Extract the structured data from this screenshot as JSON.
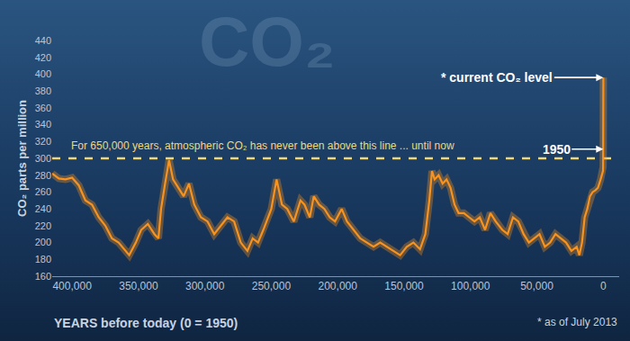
{
  "chart_data": {
    "type": "line",
    "background_text": "CO₂",
    "y_label": "CO₂ parts per million",
    "x_label": "YEARS before today (0 = 1950)",
    "footnote": "* as of July 2013",
    "reference_line": {
      "value": 300,
      "label": "For 650,000 years, atmospheric CO₂ has never been above this line ... until now",
      "color": "#f0d77a",
      "line_style": "dashed"
    },
    "annotations": [
      {
        "text": "* current CO₂ level",
        "x": -63,
        "y": 396
      },
      {
        "text": "1950",
        "x": 0,
        "y": 311
      }
    ],
    "color": "#f7931e",
    "x": [
      415000,
      410000,
      405000,
      400000,
      395000,
      390000,
      385000,
      380000,
      375000,
      370000,
      365000,
      360000,
      357000,
      352000,
      348000,
      343000,
      338000,
      335000,
      333000,
      330000,
      327000,
      324000,
      320000,
      316000,
      312000,
      308000,
      303000,
      298000,
      293000,
      288000,
      283000,
      278000,
      273000,
      268000,
      264000,
      260000,
      256000,
      250000,
      246000,
      242000,
      238000,
      233000,
      228000,
      225000,
      221000,
      218000,
      214000,
      210000,
      206000,
      202000,
      197000,
      193000,
      188000,
      183000,
      178000,
      173000,
      168000,
      163000,
      158000,
      153000,
      148000,
      143000,
      138000,
      134000,
      131000,
      129000,
      127000,
      124000,
      121000,
      118000,
      115000,
      112000,
      109000,
      105000,
      101000,
      97000,
      93000,
      89000,
      85000,
      81000,
      76000,
      72000,
      68000,
      64000,
      60000,
      56000,
      52000,
      48000,
      44000,
      40000,
      36000,
      32000,
      28000,
      24000,
      20000,
      18000,
      16000,
      14000,
      12000,
      10000,
      8000,
      6000,
      4000,
      2000,
      1000,
      200,
      100,
      0,
      -63
    ],
    "values": [
      282,
      276,
      275,
      277,
      268,
      250,
      245,
      230,
      220,
      205,
      200,
      190,
      185,
      200,
      215,
      222,
      210,
      205,
      240,
      270,
      298,
      275,
      265,
      255,
      270,
      245,
      230,
      225,
      210,
      220,
      230,
      225,
      200,
      190,
      205,
      200,
      215,
      240,
      275,
      245,
      240,
      225,
      250,
      245,
      230,
      255,
      245,
      240,
      230,
      225,
      240,
      225,
      215,
      205,
      200,
      195,
      200,
      195,
      190,
      185,
      195,
      200,
      192,
      210,
      250,
      285,
      275,
      280,
      270,
      275,
      265,
      245,
      235,
      235,
      230,
      225,
      230,
      215,
      235,
      225,
      215,
      210,
      230,
      225,
      210,
      200,
      205,
      210,
      195,
      200,
      210,
      205,
      200,
      190,
      195,
      185,
      200,
      230,
      240,
      255,
      260,
      262,
      265,
      275,
      280,
      285,
      290,
      311,
      396
    ],
    "xlim": [
      415000,
      -12000
    ],
    "xticks": [
      {
        "value": 400000,
        "label": "400,000"
      },
      {
        "value": 350000,
        "label": "350,000"
      },
      {
        "value": 300000,
        "label": "300,000"
      },
      {
        "value": 250000,
        "label": "250,000"
      },
      {
        "value": 200000,
        "label": "200,000"
      },
      {
        "value": 150000,
        "label": "150,000"
      },
      {
        "value": 100000,
        "label": "100,000"
      },
      {
        "value": 50000,
        "label": "50,000"
      },
      0
    ],
    "ylim": [
      160,
      440
    ],
    "yticks": [
      160,
      180,
      200,
      220,
      240,
      260,
      280,
      300,
      320,
      340,
      360,
      380,
      400,
      420,
      440
    ],
    "grid": false
  }
}
